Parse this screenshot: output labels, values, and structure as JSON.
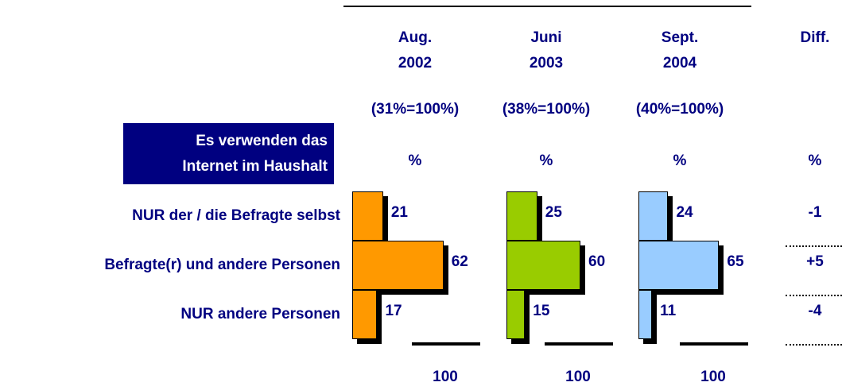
{
  "chart_data": {
    "type": "bar",
    "box_label": "Es verwenden das\nInternet im Haushalt",
    "unit": "%",
    "categories": [
      "NUR der / die Befragte selbst",
      "Befragte(r) und andere Personen",
      "NUR andere Personen"
    ],
    "series": [
      {
        "name": "Aug.\n2002",
        "base": "(31%=100%)",
        "total": 100,
        "color": "#ff9900",
        "values": [
          21,
          62,
          17
        ]
      },
      {
        "name": "Juni\n2003",
        "base": "(38%=100%)",
        "total": 100,
        "color": "#99cc00",
        "values": [
          25,
          60,
          15
        ]
      },
      {
        "name": "Sept.\n2004",
        "base": "(40%=100%)",
        "total": 100,
        "color": "#99ccff",
        "values": [
          24,
          65,
          11
        ]
      }
    ],
    "diff": {
      "name": "Diff.",
      "values": [
        -1,
        5,
        -4
      ],
      "value_labels": [
        "-1",
        "+5",
        "-4"
      ]
    }
  }
}
